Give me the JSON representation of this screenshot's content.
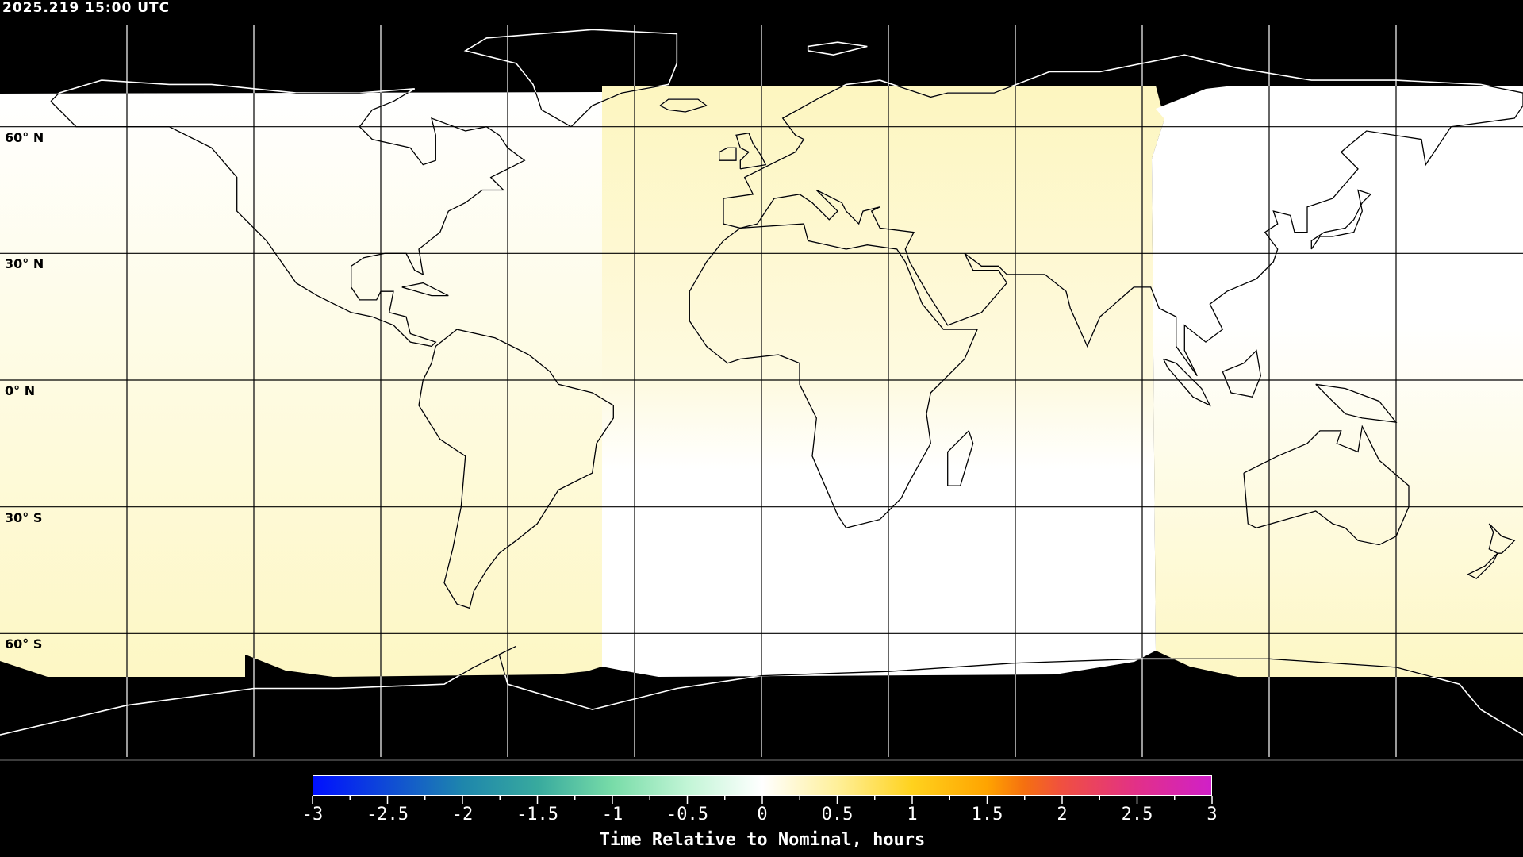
{
  "timestamp": "2025.219 15:00 UTC",
  "map": {
    "projection": "equirectangular",
    "lon_range": [
      -180,
      180
    ],
    "lat_range": [
      -90,
      90
    ],
    "graticule_spacing_deg": 30,
    "lat_labels": [
      "60° N",
      "30° N",
      "0° N",
      "30° S",
      "60° S"
    ],
    "lat_label_values": [
      60,
      30,
      0,
      -30,
      -60
    ],
    "colors": {
      "no_data": "#000000",
      "coast_in_data": "#000000",
      "coast_in_nodata": "#ffffff",
      "near_zero": "#ffffff",
      "slight_positive": "#fdf7c4"
    }
  },
  "colorbar": {
    "min": -3,
    "max": 3,
    "tick_labels": [
      "-3",
      "-2.5",
      "-2",
      "-1.5",
      "-1",
      "-0.5",
      "0",
      "0.5",
      "1",
      "1.5",
      "2",
      "2.5",
      "3"
    ],
    "tick_values": [
      -3,
      -2.5,
      -2,
      -1.5,
      -1,
      -0.5,
      0,
      0.5,
      1,
      1.5,
      2,
      2.5,
      3
    ],
    "title": "Time Relative to Nominal, hours",
    "stops": [
      {
        "value": -3,
        "color": "#0010ff"
      },
      {
        "value": -2,
        "color": "#1e86ac"
      },
      {
        "value": -1.5,
        "color": "#38aa9e"
      },
      {
        "value": -1,
        "color": "#78dca8"
      },
      {
        "value": -0.5,
        "color": "#c2f5d6"
      },
      {
        "value": 0,
        "color": "#ffffff"
      },
      {
        "value": 0.5,
        "color": "#fff09a"
      },
      {
        "value": 1,
        "color": "#ffd21e"
      },
      {
        "value": 1.5,
        "color": "#ffa400"
      },
      {
        "value": 1.75,
        "color": "#f57010"
      },
      {
        "value": 2,
        "color": "#f05040"
      },
      {
        "value": 2.5,
        "color": "#e23088"
      },
      {
        "value": 3,
        "color": "#d020c8"
      }
    ]
  }
}
